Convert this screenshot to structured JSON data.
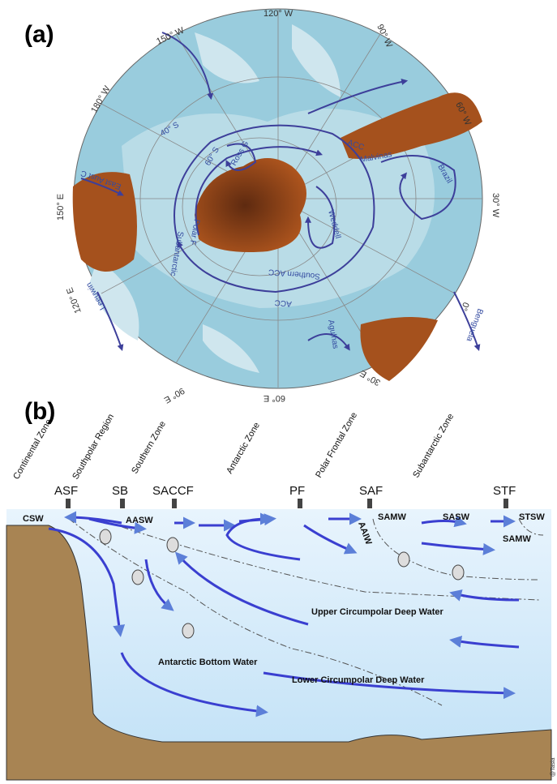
{
  "panel_a": {
    "label": "(a)",
    "longitudes": [
      "120° W",
      "150° W",
      "90° W",
      "180° W",
      "60° W",
      "150° E",
      "30° W",
      "120° E",
      "0°",
      "90° E",
      "60° E",
      "30° E"
    ],
    "latitudes": [
      "40° S",
      "60° S"
    ],
    "currents": [
      "ACC",
      "Malvinas",
      "Brazil",
      "Ross G",
      "Weddell",
      "Southern ACC",
      "ACC",
      "Polar F",
      "Subantarctic",
      "Leeuwin",
      "Agulhas",
      "Benguela",
      "East Aust C"
    ]
  },
  "panel_b": {
    "label": "(b)",
    "zones": [
      "Continental Zone",
      "Southpolar Region",
      "Southern Zone",
      "Antarctic Zone",
      "Polar Frontal Zone",
      "Subantarctic Zone"
    ],
    "fronts": [
      "ASF",
      "SB",
      "SACCF",
      "PF",
      "SAF",
      "STF"
    ],
    "water_masses": [
      "CSW",
      "AASW",
      "SAMW",
      "SASW",
      "STSW",
      "SAMW",
      "AAIW",
      "Upper Circumpolar Deep Water",
      "Lower Circumpolar Deep Water",
      "Antarctic Bottom Water"
    ],
    "credit": "@Tasia"
  }
}
